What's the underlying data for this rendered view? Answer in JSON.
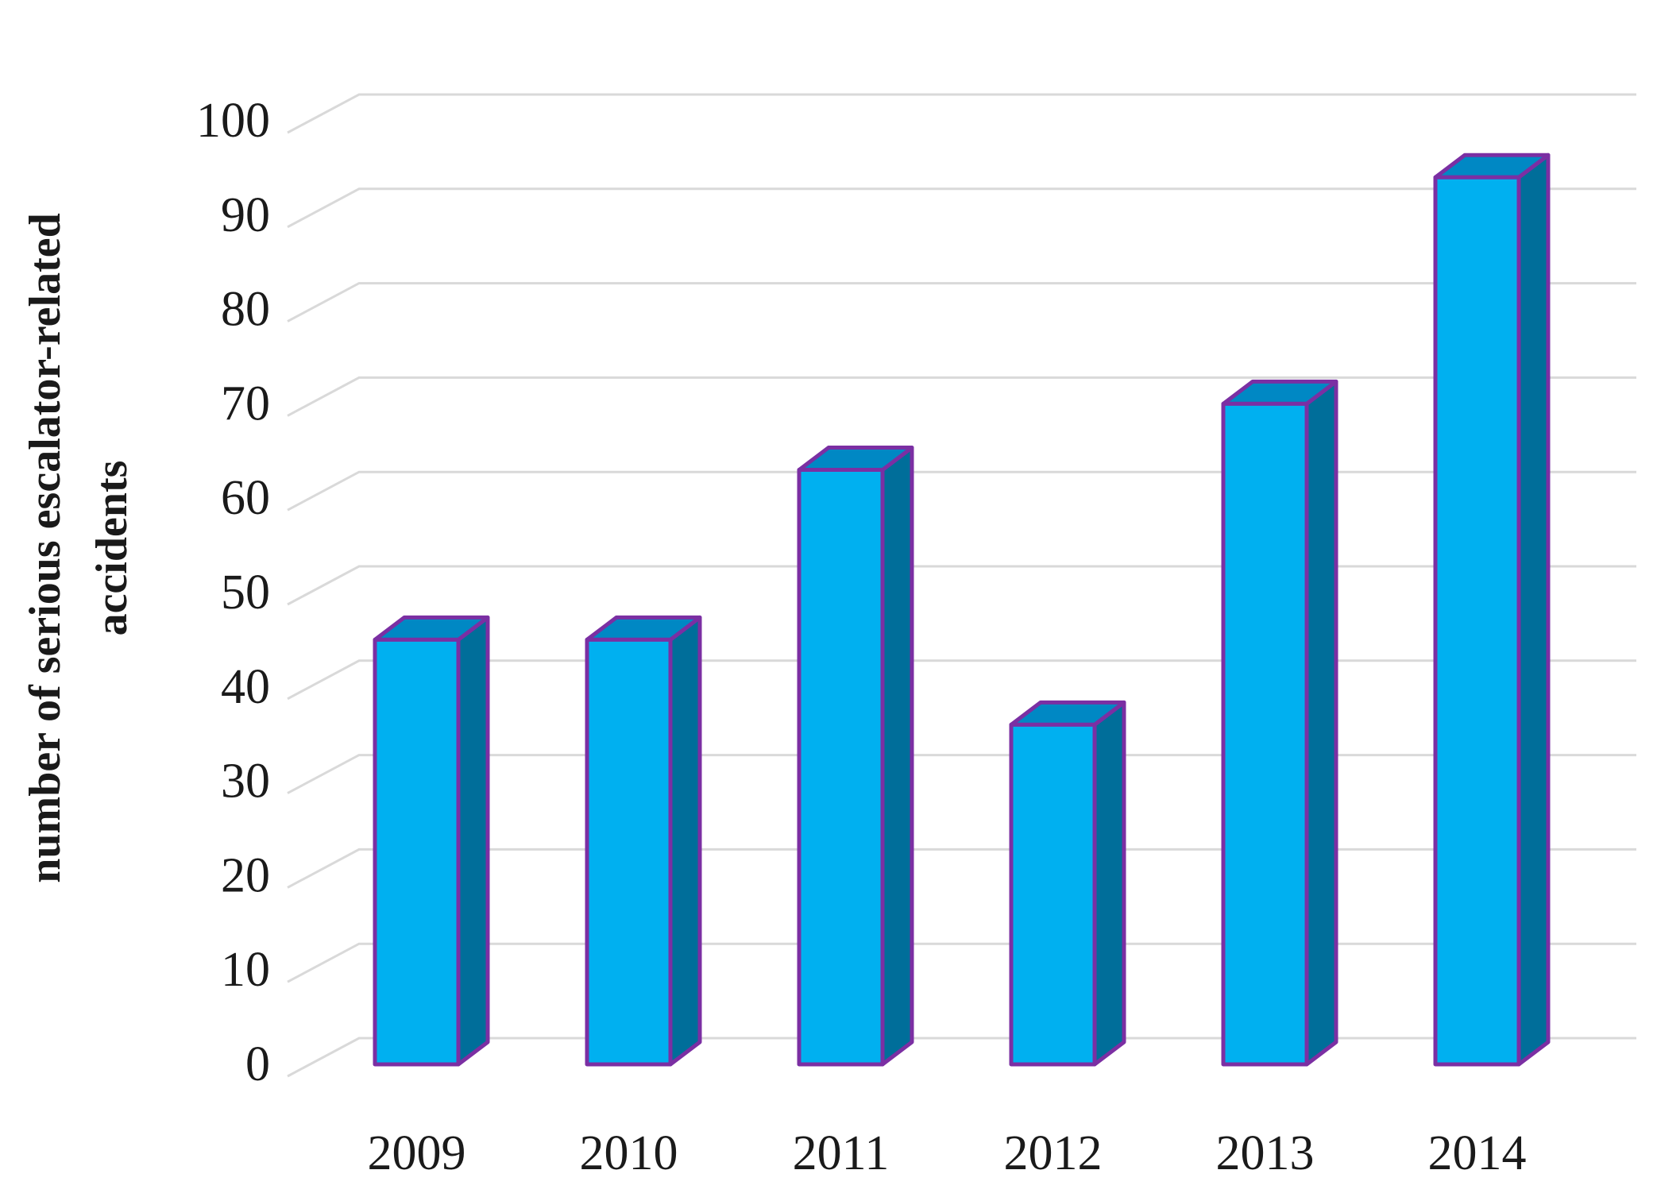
{
  "chart_data": {
    "type": "bar",
    "categories": [
      "2009",
      "2010",
      "2011",
      "2012",
      "2013",
      "2014"
    ],
    "values": [
      45,
      45,
      63,
      36,
      70,
      94
    ],
    "title": "",
    "xlabel": "",
    "ylabel": "number of serious escalator-related accidents",
    "ylabel_lines": [
      "number of serious escalator-related",
      "accidents"
    ],
    "ylim": [
      0,
      100
    ],
    "yticks": [
      "0",
      "10",
      "20",
      "30",
      "40",
      "50",
      "60",
      "70",
      "80",
      "90",
      "100"
    ],
    "grid": true,
    "legend": "none",
    "colors": {
      "bar_front": "#00B0F0",
      "bar_side": "#006E9A",
      "bar_top": "#0088C4",
      "bar_outline": "#7B2FA3",
      "grid": "#d9d9d9"
    }
  }
}
